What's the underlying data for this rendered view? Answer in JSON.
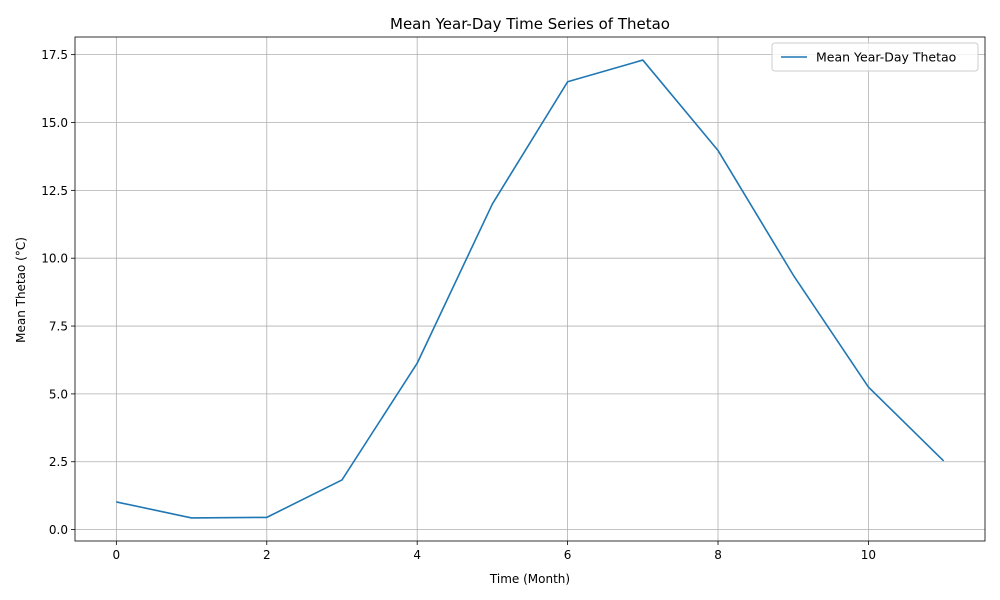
{
  "chart_data": {
    "type": "line",
    "title": "Mean Year-Day Time Series of Thetao",
    "xlabel": "Time (Month)",
    "ylabel": "Mean Thetao (°C)",
    "xlim": [
      -0.55,
      11.55
    ],
    "ylim": [
      -0.42,
      18.15
    ],
    "xticks": [
      0,
      2,
      4,
      6,
      8,
      10
    ],
    "yticks": [
      0.0,
      2.5,
      5.0,
      7.5,
      10.0,
      12.5,
      15.0,
      17.5
    ],
    "xtick_labels": [
      "0",
      "2",
      "4",
      "6",
      "8",
      "10"
    ],
    "ytick_labels": [
      "0.0",
      "2.5",
      "5.0",
      "7.5",
      "10.0",
      "12.5",
      "15.0",
      "17.5"
    ],
    "grid": true,
    "legend_position": "upper right",
    "series": [
      {
        "name": "Mean Year-Day Thetao",
        "color": "#1f77b4",
        "x": [
          0,
          1,
          2,
          3,
          4,
          5,
          6,
          7,
          8,
          9,
          10,
          11
        ],
        "values": [
          1.02,
          0.43,
          0.45,
          1.83,
          6.13,
          12.0,
          16.5,
          17.3,
          13.97,
          9.38,
          5.25,
          2.53
        ]
      }
    ]
  }
}
